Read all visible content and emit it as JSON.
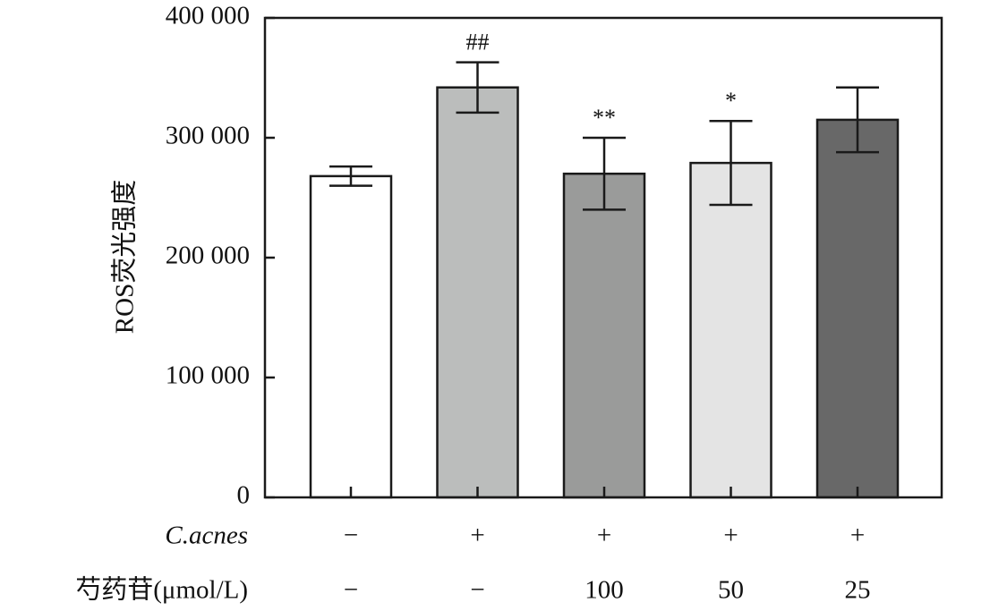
{
  "chart_data": {
    "type": "bar",
    "ylabel": "ROS荧光强度",
    "ylim": [
      0,
      400000
    ],
    "y_ticks": [
      {
        "value": 0,
        "label": "0"
      },
      {
        "value": 100000,
        "label": "100 000"
      },
      {
        "value": 200000,
        "label": "200 000"
      },
      {
        "value": 300000,
        "label": "300 000"
      },
      {
        "value": 400000,
        "label": "400 000"
      }
    ],
    "bars": [
      {
        "value": 268000,
        "error": 8000,
        "color": "#ffffff",
        "significance": ""
      },
      {
        "value": 342000,
        "error": 21000,
        "color": "#bbbdbc",
        "significance": "##"
      },
      {
        "value": 270000,
        "error": 30000,
        "color": "#9a9b9a",
        "significance": "**"
      },
      {
        "value": 279000,
        "error": 35000,
        "color": "#e4e4e4",
        "significance": "*"
      },
      {
        "value": 315000,
        "error": 27000,
        "color": "#686868",
        "significance": ""
      }
    ],
    "condition_rows": [
      {
        "label": "C.acnes",
        "italic": true,
        "values": [
          "−",
          "+",
          "+",
          "+",
          "+"
        ]
      },
      {
        "label": "芍药苷(μmol/L)",
        "italic": false,
        "values": [
          "−",
          "−",
          "100",
          "50",
          "25"
        ]
      }
    ],
    "grid": false,
    "legend": "none"
  }
}
